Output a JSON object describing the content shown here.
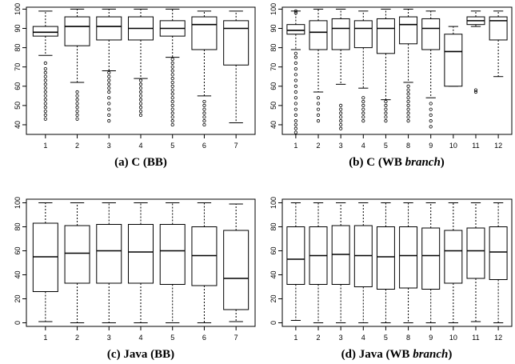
{
  "chart_data": [
    {
      "type": "box",
      "caption": {
        "main": "(a) C (BB)",
        "italic": ""
      },
      "categories": [
        "1",
        "2",
        "3",
        "4",
        "5",
        "6",
        "7"
      ],
      "ylim": [
        35,
        101
      ],
      "yticks": [
        40,
        50,
        60,
        70,
        80,
        90,
        100
      ],
      "boxes": [
        {
          "min": 76,
          "q1": 86,
          "median": 88,
          "q3": 91,
          "max": 99,
          "outliers": [
            43,
            45,
            47,
            49,
            51,
            53,
            55,
            57,
            59,
            61,
            63,
            65,
            67,
            69,
            72
          ]
        },
        {
          "min": 62,
          "q1": 81,
          "median": 91,
          "q3": 96,
          "max": 100,
          "outliers": [
            43,
            45,
            47,
            49,
            51,
            53,
            55,
            57
          ]
        },
        {
          "min": 68,
          "q1": 84,
          "median": 91,
          "q3": 96,
          "max": 100,
          "outliers": [
            42,
            45,
            48,
            51,
            54,
            57,
            59,
            61,
            63,
            65,
            67
          ]
        },
        {
          "min": 64,
          "q1": 84,
          "median": 90,
          "q3": 96,
          "max": 100,
          "outliers": [
            45,
            47,
            49,
            51,
            53,
            55,
            57,
            59,
            61,
            63
          ]
        },
        {
          "min": 75,
          "q1": 86,
          "median": 90,
          "q3": 94,
          "max": 100,
          "outliers": [
            40,
            42,
            44,
            46,
            48,
            50,
            52,
            54,
            56,
            58,
            60,
            62,
            64,
            66,
            68,
            70,
            72,
            74
          ]
        },
        {
          "min": 55,
          "q1": 79,
          "median": 92,
          "q3": 96,
          "max": 99,
          "outliers": [
            40,
            42,
            44,
            46,
            48,
            50,
            52
          ]
        },
        {
          "min": 41,
          "q1": 71,
          "median": 90,
          "q3": 94,
          "max": 99,
          "outliers": []
        }
      ]
    },
    {
      "type": "box",
      "caption": {
        "main": "(b) C (WB ",
        "italic": "branch",
        "close": ")"
      },
      "categories": [
        "1",
        "2",
        "3",
        "4",
        "5",
        "8",
        "9",
        "10",
        "11",
        "12"
      ],
      "ylim": [
        35,
        101
      ],
      "yticks": [
        40,
        50,
        60,
        70,
        80,
        90,
        100
      ],
      "boxes": [
        {
          "min": 79,
          "q1": 87,
          "median": 89,
          "q3": 92,
          "max": 99,
          "outliers": [
            36,
            38,
            40,
            42,
            45,
            48,
            51,
            54,
            57,
            60,
            63,
            66,
            69,
            72,
            75,
            77,
            98,
            99
          ]
        },
        {
          "min": 57,
          "q1": 79,
          "median": 88,
          "q3": 94,
          "max": 100,
          "outliers": [
            42,
            45,
            48,
            51,
            54
          ]
        },
        {
          "min": 61,
          "q1": 79,
          "median": 90,
          "q3": 95,
          "max": 100,
          "outliers": [
            38,
            40,
            42,
            44,
            46,
            48,
            50
          ]
        },
        {
          "min": 59,
          "q1": 80,
          "median": 90,
          "q3": 94,
          "max": 99,
          "outliers": [
            42,
            44,
            46,
            48,
            50,
            52,
            54
          ]
        },
        {
          "min": 53,
          "q1": 77,
          "median": 90,
          "q3": 95,
          "max": 100,
          "outliers": [
            42,
            44,
            46,
            48,
            50,
            52
          ]
        },
        {
          "min": 62,
          "q1": 82,
          "median": 92,
          "q3": 96,
          "max": 100,
          "outliers": [
            42,
            44,
            46,
            48,
            50,
            52,
            54,
            56,
            58,
            60
          ]
        },
        {
          "min": 54,
          "q1": 79,
          "median": 90,
          "q3": 95,
          "max": 99,
          "outliers": [
            39,
            42,
            45,
            48,
            51
          ]
        },
        {
          "min": 60,
          "q1": 60,
          "median": 78,
          "q3": 87,
          "max": 91,
          "outliers": []
        },
        {
          "min": 91,
          "q1": 92,
          "median": 94,
          "q3": 96,
          "max": 99,
          "outliers": [
            57,
            58
          ]
        },
        {
          "min": 65,
          "q1": 84,
          "median": 94,
          "q3": 96,
          "max": 99,
          "outliers": []
        }
      ]
    },
    {
      "type": "box",
      "caption": {
        "main": "(c) Java (BB)",
        "italic": ""
      },
      "categories": [
        "1",
        "2",
        "3",
        "4",
        "5",
        "6",
        "7"
      ],
      "ylim": [
        -3,
        103
      ],
      "yticks": [
        0,
        20,
        40,
        60,
        80,
        100
      ],
      "boxes": [
        {
          "min": 1,
          "q1": 26,
          "median": 55,
          "q3": 83,
          "max": 100,
          "outliers": []
        },
        {
          "min": 0,
          "q1": 33,
          "median": 58,
          "q3": 81,
          "max": 100,
          "outliers": []
        },
        {
          "min": 0,
          "q1": 33,
          "median": 60,
          "q3": 82,
          "max": 100,
          "outliers": []
        },
        {
          "min": 0,
          "q1": 33,
          "median": 59,
          "q3": 82,
          "max": 100,
          "outliers": []
        },
        {
          "min": 0,
          "q1": 32,
          "median": 60,
          "q3": 82,
          "max": 100,
          "outliers": []
        },
        {
          "min": 0,
          "q1": 31,
          "median": 56,
          "q3": 80,
          "max": 100,
          "outliers": []
        },
        {
          "min": 1,
          "q1": 11,
          "median": 37,
          "q3": 77,
          "max": 99,
          "outliers": []
        }
      ]
    },
    {
      "type": "box",
      "caption": {
        "main": "(d) Java (WB ",
        "italic": "branch",
        "close": ")"
      },
      "categories": [
        "1",
        "2",
        "3",
        "4",
        "5",
        "8",
        "9",
        "10",
        "11",
        "12"
      ],
      "ylim": [
        -3,
        103
      ],
      "yticks": [
        0,
        20,
        40,
        60,
        80,
        100
      ],
      "boxes": [
        {
          "min": 2,
          "q1": 32,
          "median": 53,
          "q3": 80,
          "max": 100,
          "outliers": []
        },
        {
          "min": 0,
          "q1": 32,
          "median": 56,
          "q3": 80,
          "max": 100,
          "outliers": []
        },
        {
          "min": 0,
          "q1": 32,
          "median": 57,
          "q3": 81,
          "max": 100,
          "outliers": []
        },
        {
          "min": 0,
          "q1": 30,
          "median": 56,
          "q3": 81,
          "max": 100,
          "outliers": []
        },
        {
          "min": 0,
          "q1": 28,
          "median": 55,
          "q3": 80,
          "max": 100,
          "outliers": []
        },
        {
          "min": 0,
          "q1": 29,
          "median": 56,
          "q3": 80,
          "max": 100,
          "outliers": []
        },
        {
          "min": 0,
          "q1": 28,
          "median": 56,
          "q3": 79,
          "max": 100,
          "outliers": []
        },
        {
          "min": 0,
          "q1": 33,
          "median": 60,
          "q3": 77,
          "max": 100,
          "outliers": []
        },
        {
          "min": 1,
          "q1": 37,
          "median": 60,
          "q3": 79,
          "max": 100,
          "outliers": []
        },
        {
          "min": 0,
          "q1": 36,
          "median": 59,
          "q3": 80,
          "max": 100,
          "outliers": []
        }
      ]
    }
  ]
}
